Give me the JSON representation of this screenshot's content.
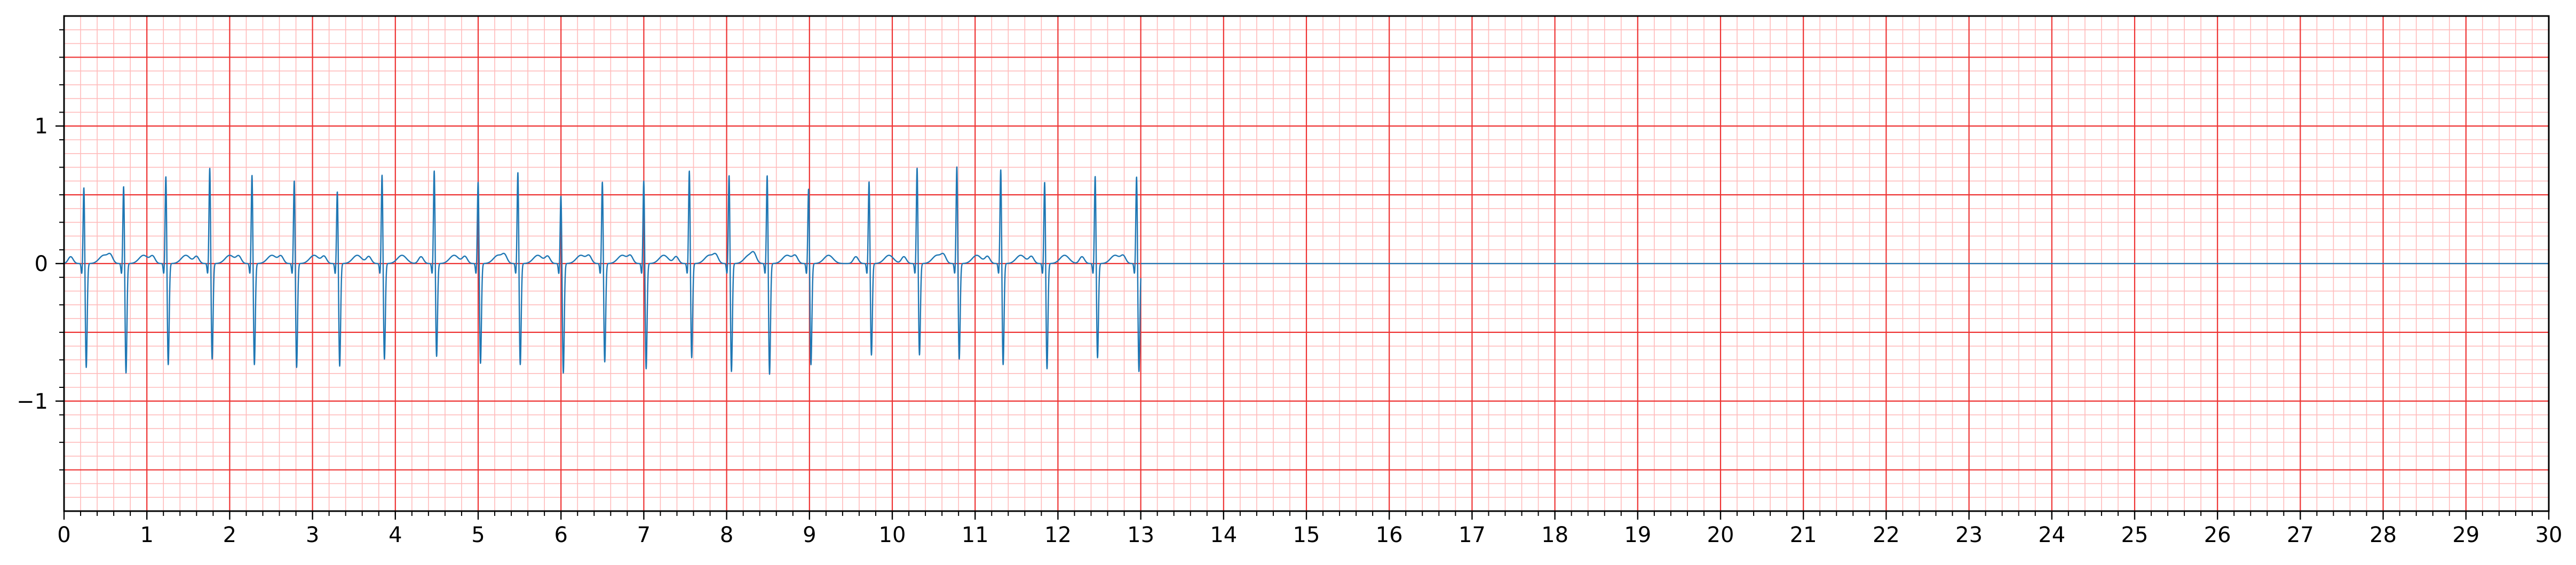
{
  "chart_data": {
    "type": "line",
    "title": "",
    "xlabel": "",
    "ylabel": "",
    "xlim": [
      0,
      30
    ],
    "ylim": [
      -1.8,
      1.8
    ],
    "x_ticks": [
      0,
      1,
      2,
      3,
      4,
      5,
      6,
      7,
      8,
      9,
      10,
      11,
      12,
      13,
      14,
      15,
      16,
      17,
      18,
      19,
      20,
      21,
      22,
      23,
      24,
      25,
      26,
      27,
      28,
      29,
      30
    ],
    "x_tick_labels": [
      "0",
      "1",
      "2",
      "3",
      "4",
      "5",
      "6",
      "7",
      "8",
      "9",
      "10",
      "11",
      "12",
      "13",
      "14",
      "15",
      "16",
      "17",
      "18",
      "19",
      "20",
      "21",
      "22",
      "23",
      "24",
      "25",
      "26",
      "27",
      "28",
      "29",
      "30"
    ],
    "y_ticks": [
      -1,
      0,
      1
    ],
    "y_tick_labels": [
      "−1",
      "0",
      "1"
    ],
    "grid": {
      "major_step_x": 1,
      "minor_step_x": 0.2,
      "major_step_y": 0.5,
      "minor_step_y": 0.1,
      "major_color": "#ee3333",
      "minor_color": "#ffbbbb"
    },
    "legend": "none",
    "series": [
      {
        "color": "#1f77b4",
        "beats": [
          {
            "t": 0.24,
            "r": 0.58,
            "s": -0.76
          },
          {
            "t": 0.72,
            "r": 0.59,
            "s": -0.8
          },
          {
            "t": 1.23,
            "r": 0.66,
            "s": -0.74
          },
          {
            "t": 1.76,
            "r": 0.72,
            "s": -0.7
          },
          {
            "t": 2.27,
            "r": 0.67,
            "s": -0.74
          },
          {
            "t": 2.78,
            "r": 0.63,
            "s": -0.76
          },
          {
            "t": 3.3,
            "r": 0.55,
            "s": -0.75
          },
          {
            "t": 3.84,
            "r": 0.67,
            "s": -0.7
          },
          {
            "t": 4.47,
            "r": 0.7,
            "s": -0.68
          },
          {
            "t": 5.0,
            "r": 0.62,
            "s": -0.73
          },
          {
            "t": 5.48,
            "r": 0.69,
            "s": -0.74
          },
          {
            "t": 6.0,
            "r": 0.52,
            "s": -0.8
          },
          {
            "t": 6.5,
            "r": 0.62,
            "s": -0.72
          },
          {
            "t": 7.0,
            "r": 0.63,
            "s": -0.77
          },
          {
            "t": 7.55,
            "r": 0.7,
            "s": -0.69
          },
          {
            "t": 8.03,
            "r": 0.67,
            "s": -0.79
          },
          {
            "t": 8.49,
            "r": 0.67,
            "s": -0.81
          },
          {
            "t": 8.99,
            "r": 0.57,
            "s": -0.74
          },
          {
            "t": 9.72,
            "r": 0.62,
            "s": -0.67
          },
          {
            "t": 10.3,
            "r": 0.72,
            "s": -0.67
          },
          {
            "t": 10.78,
            "r": 0.73,
            "s": -0.7
          },
          {
            "t": 11.31,
            "r": 0.71,
            "s": -0.74
          },
          {
            "t": 11.84,
            "r": 0.62,
            "s": -0.77
          },
          {
            "t": 12.45,
            "r": 0.66,
            "s": -0.69
          },
          {
            "t": 12.95,
            "r": 0.66,
            "s": -0.79
          }
        ],
        "signal_end": 13.0,
        "baseline_after": 0
      }
    ]
  }
}
